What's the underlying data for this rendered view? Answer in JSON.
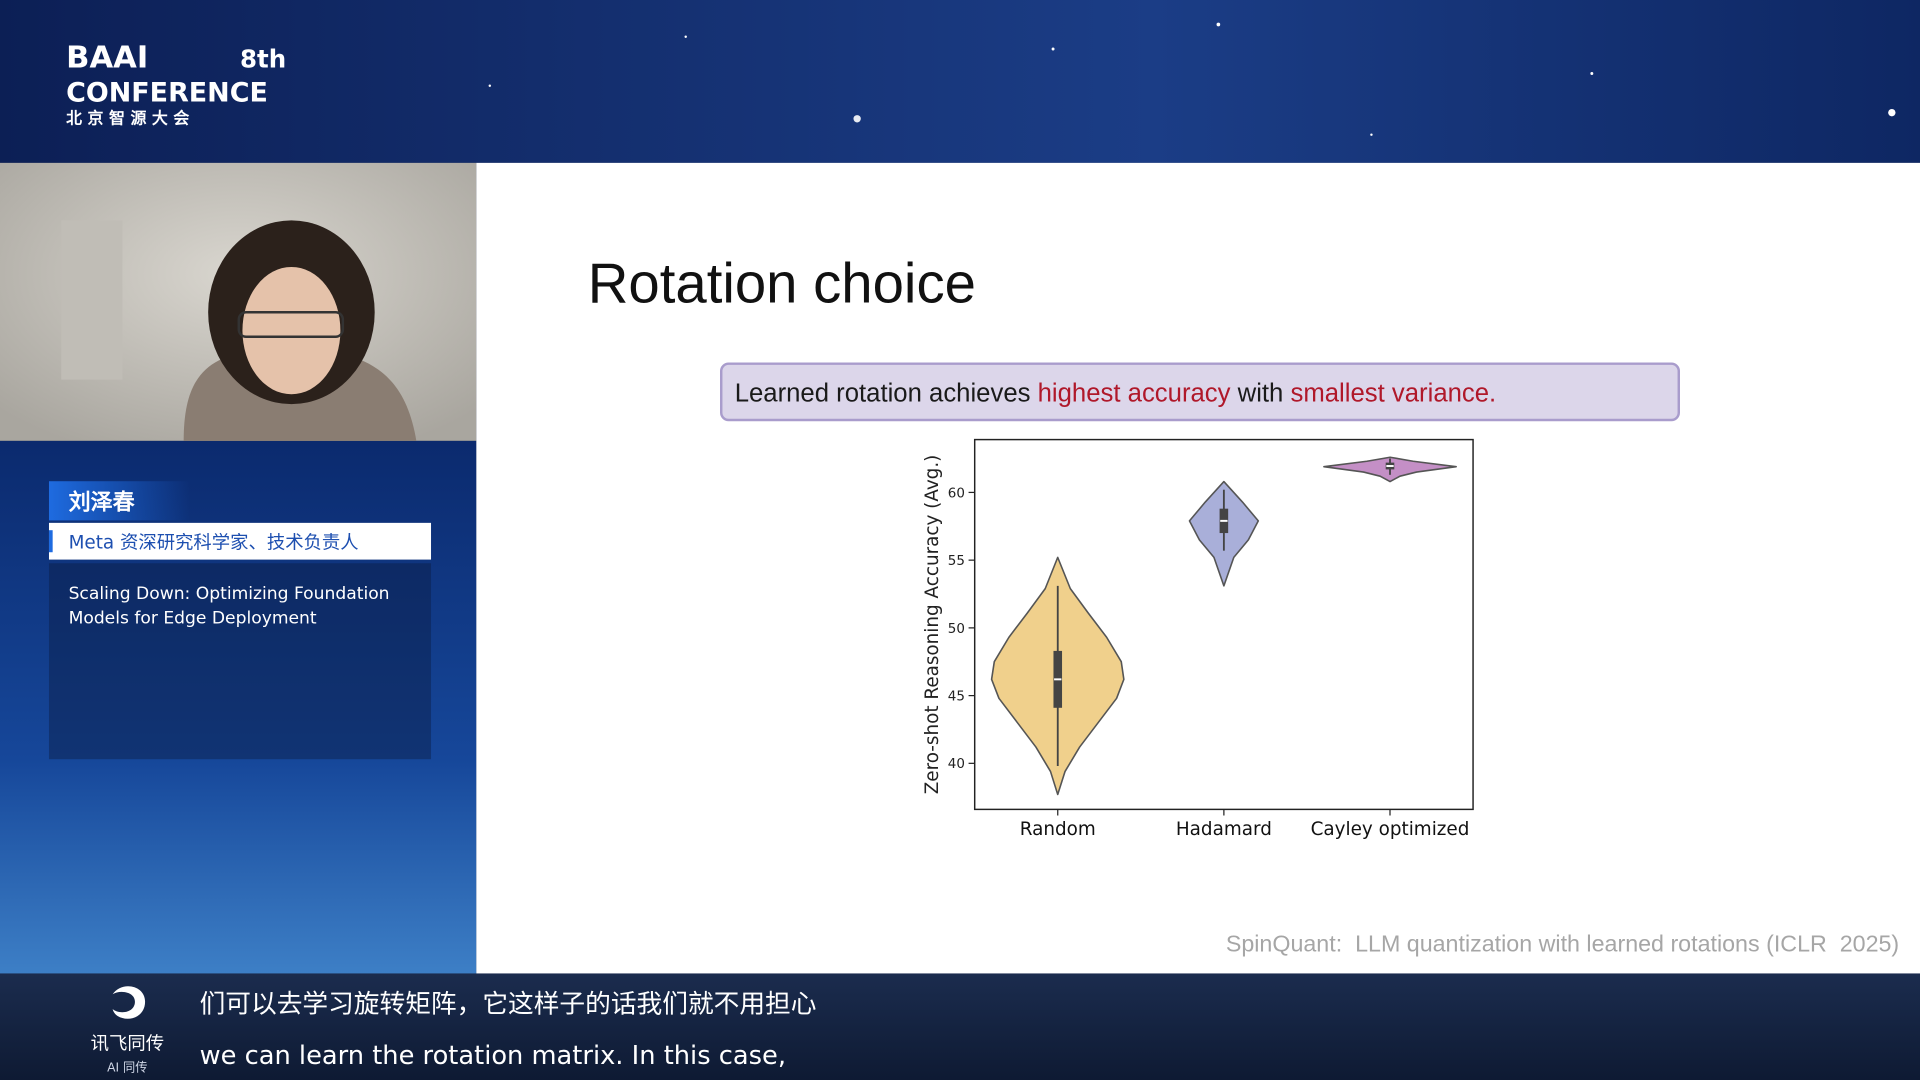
{
  "header": {
    "logo": "BAAI",
    "edition": "8th",
    "conference": "CONFERENCE",
    "subtitle": "北 京 智 源 大 会"
  },
  "speaker": {
    "name": "刘泽春",
    "role": "Meta 资深研究科学家、技术负责人",
    "talk_title_lines": [
      "Scaling Down: Optimizing Foundation",
      "Models for Edge Deployment"
    ]
  },
  "slide": {
    "title": "Rotation choice",
    "callout": [
      {
        "text": "Learned rotation achieves ",
        "color": "#1a1a1a"
      },
      {
        "text": "highest accuracy",
        "color": "#b0182a"
      },
      {
        "text": " with ",
        "color": "#1a1a1a"
      },
      {
        "text": "smallest variance.",
        "color": "#b0182a"
      }
    ],
    "citation": "SpinQuant:  LLM quantization with learned rotations (ICLR  2025)"
  },
  "chart_data": {
    "type": "violin",
    "ylabel": "Zero-shot Reasoning Accuracy (Avg.)",
    "categories": [
      "Random",
      "Hadamard",
      "Cayley optimized"
    ],
    "ylim": [
      36.6,
      63.9
    ],
    "yticks": [
      40,
      45,
      50,
      55,
      60
    ],
    "violins": [
      {
        "color": "#f0d08c",
        "density_y": [
          55.2,
          52.9,
          51.1,
          49.3,
          47.5,
          46.2,
          44.8,
          43.0,
          41.2,
          39.4,
          37.7
        ],
        "density": [
          0,
          0.19,
          0.46,
          0.74,
          0.96,
          1.0,
          0.89,
          0.61,
          0.33,
          0.11,
          0
        ],
        "whisker_low": 39.8,
        "q1": 44.1,
        "median": 46.2,
        "q3": 48.3,
        "whisker_high": 53.1
      },
      {
        "color": "#a9afd9",
        "density_y": [
          60.8,
          59.3,
          57.9,
          56.5,
          55.2,
          53.1
        ],
        "density": [
          0,
          0.28,
          0.52,
          0.37,
          0.15,
          0
        ],
        "whisker_low": 55.7,
        "q1": 57.0,
        "median": 57.9,
        "q3": 58.8,
        "whisker_high": 60.2
      },
      {
        "color": "#c48fc6",
        "density_y": [
          62.6,
          62.3,
          61.9,
          61.5,
          61.2,
          60.8
        ],
        "density": [
          0,
          0.35,
          1.0,
          0.4,
          0.15,
          0
        ],
        "whisker_low": 61.3,
        "q1": 61.7,
        "median": 61.95,
        "q3": 62.2,
        "whisker_high": 62.5
      }
    ]
  },
  "captions": {
    "brand": "讯飞同传",
    "brand_sub": "AI 同传",
    "zh": "们可以去学习旋转矩阵，它这样子的话我们就不用担心",
    "en": "we can learn the rotation matrix. In this case,"
  }
}
